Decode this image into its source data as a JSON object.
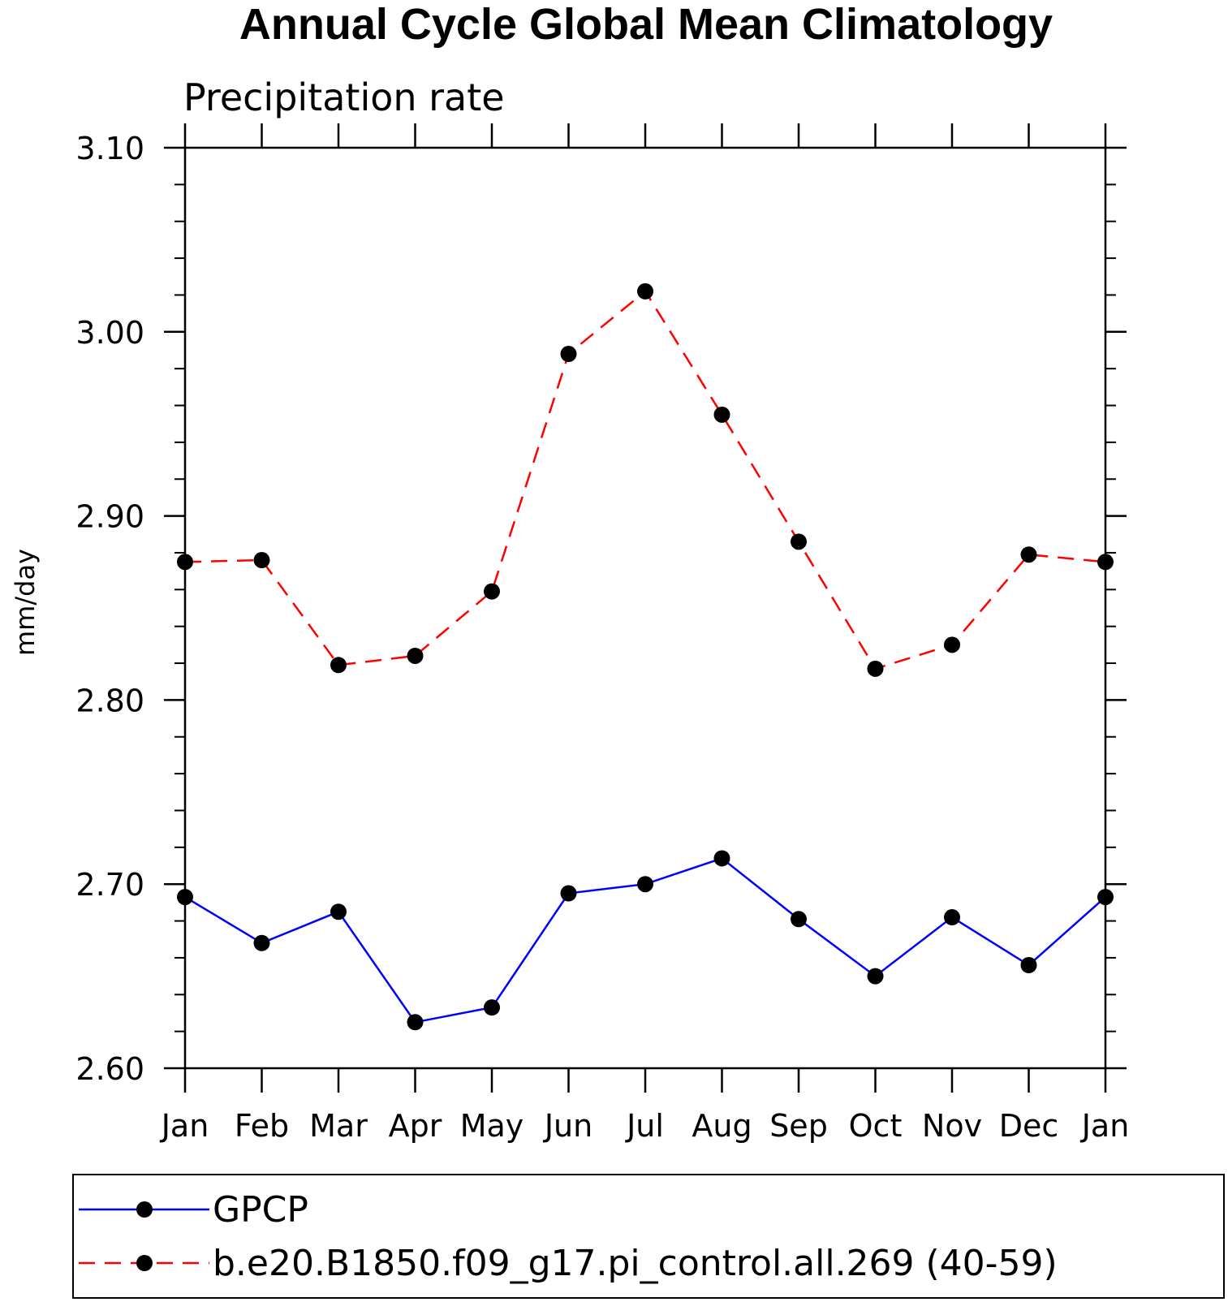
{
  "chart_data": {
    "type": "line",
    "title": "Annual Cycle Global Mean Climatology",
    "subtitle": "Precipitation rate",
    "xlabel": "",
    "ylabel": "mm/day",
    "categories": [
      "Jan",
      "Feb",
      "Mar",
      "Apr",
      "May",
      "Jun",
      "Jul",
      "Aug",
      "Sep",
      "Oct",
      "Nov",
      "Dec",
      "Jan"
    ],
    "ylim": [
      2.6,
      3.1
    ],
    "yticks": [
      "2.60",
      "2.70",
      "2.80",
      "2.90",
      "3.00",
      "3.10"
    ],
    "grid": false,
    "legend_position": "bottom",
    "series": [
      {
        "name": "GPCP",
        "color": "#0000ff",
        "line_style": "solid",
        "marker": "filled-circle",
        "values": [
          2.693,
          2.668,
          2.685,
          2.625,
          2.633,
          2.695,
          2.7,
          2.714,
          2.681,
          2.65,
          2.682,
          2.656,
          2.693
        ]
      },
      {
        "name": "b.e20.B1850.f09_g17.pi_control.all.269 (40-59)",
        "color": "#ff0000",
        "line_style": "dashed",
        "marker": "filled-circle",
        "values": [
          2.875,
          2.876,
          2.819,
          2.824,
          2.859,
          2.988,
          3.022,
          2.955,
          2.886,
          2.817,
          2.83,
          2.879,
          2.875
        ]
      }
    ]
  }
}
